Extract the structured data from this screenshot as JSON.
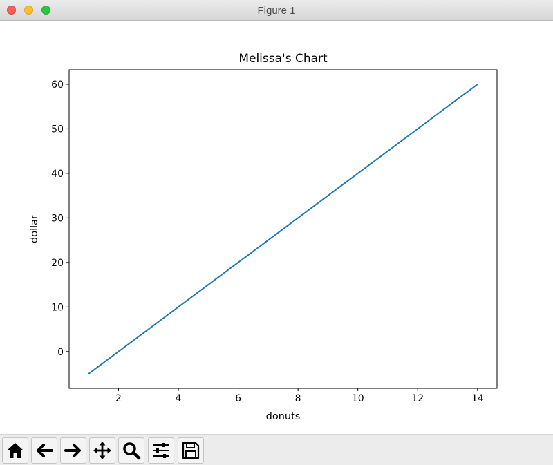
{
  "window": {
    "title": "Figure 1"
  },
  "toolbar": {
    "buttons": [
      {
        "icon": "home-icon"
      },
      {
        "icon": "back-arrow-icon"
      },
      {
        "icon": "forward-arrow-icon"
      },
      {
        "icon": "pan-icon"
      },
      {
        "icon": "zoom-icon"
      },
      {
        "icon": "configure-subplots-icon"
      },
      {
        "icon": "save-icon"
      }
    ]
  },
  "chart_data": {
    "type": "line",
    "title": "Melissa's Chart",
    "xlabel": "donuts",
    "ylabel": "dollar",
    "x": [
      1,
      14
    ],
    "series": [
      {
        "values": [
          -5,
          60
        ],
        "color": "#1f77b4"
      }
    ],
    "xlim": [
      0.35,
      14.65
    ],
    "ylim": [
      -8.25,
      63.25
    ],
    "xticks": [
      2,
      4,
      6,
      8,
      10,
      12,
      14
    ],
    "yticks": [
      0,
      10,
      20,
      30,
      40,
      50,
      60
    ],
    "grid": false
  }
}
